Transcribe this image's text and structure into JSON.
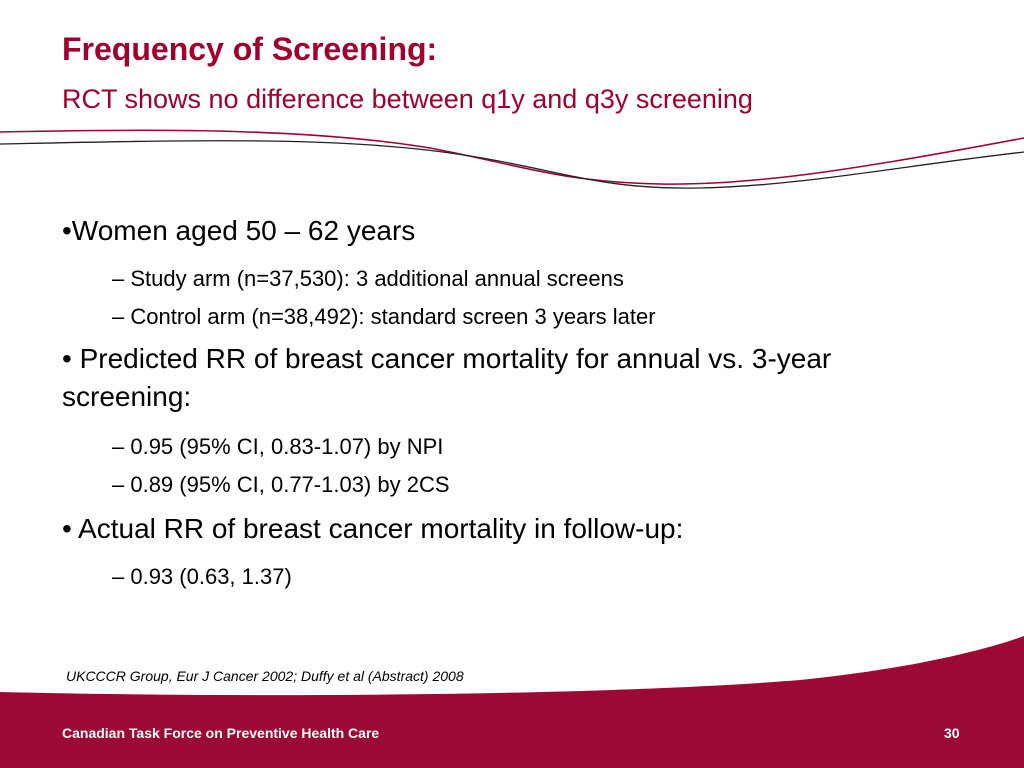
{
  "title": "Frequency of Screening:",
  "subtitle": "RCT shows no difference between q1y and q3y screening",
  "bullets": [
    {
      "text": "•Women aged 50 – 62 years"
    },
    {
      "sub": "– Study arm (n=37,530): 3 additional annual screens"
    },
    {
      "sub": "– Control arm (n=38,492): standard screen 3 years later"
    },
    {
      "text": "• Predicted RR of breast cancer mortality for annual vs. 3-year screening:"
    },
    {
      "sub": "– 0.95 (95% CI, 0.83-1.07) by NPI"
    },
    {
      "sub": "– 0.89 (95% CI, 0.77-1.03) by 2CS"
    },
    {
      "text": "• Actual RR of breast cancer mortality in follow-up:"
    },
    {
      "sub": "– 0.93 (0.63, 1.37)"
    }
  ],
  "citation": "UKCCCR Group, Eur J Cancer 2002; Duffy et al (Abstract) 2008",
  "footer": {
    "organization": "Canadian Task Force on Preventive Health Care",
    "page_number": "30"
  },
  "colors": {
    "accent": "#a0002d",
    "footer_background": "#9b0a34",
    "footer_text": "#ffffff"
  }
}
